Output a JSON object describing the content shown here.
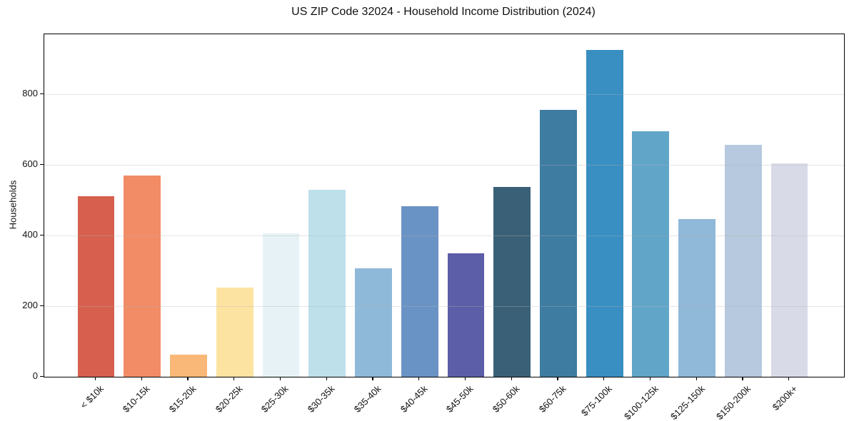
{
  "chart_data": {
    "type": "bar",
    "title": "US ZIP Code 32024 - Household Income Distribution (2024)",
    "xlabel": "",
    "ylabel": "Households",
    "categories": [
      "< $10k",
      "$10-15k",
      "$15-20k",
      "$20-25k",
      "$25-30k",
      "$30-35k",
      "$35-40k",
      "$40-45k",
      "$45-50k",
      "$50-60k",
      "$60-75k",
      "$75-100k",
      "$100-125k",
      "$125-150k",
      "$150-200k",
      "$200k+"
    ],
    "values": [
      511,
      570,
      62,
      252,
      407,
      530,
      308,
      483,
      349,
      538,
      755,
      926,
      695,
      447,
      656,
      604
    ],
    "bar_colors": [
      "#d6604d",
      "#f28c66",
      "#f9b878",
      "#fde3a1",
      "#e6f2f6",
      "#bde0eb",
      "#8fb9d9",
      "#6a93c5",
      "#5d5ea8",
      "#3a6077",
      "#3e7ca2",
      "#398fc2",
      "#61a5c9",
      "#90b8d9",
      "#b6c9de",
      "#d8dbe7"
    ],
    "yticks": [
      0,
      200,
      400,
      600,
      800
    ],
    "ylim": [
      0,
      970
    ],
    "xtick_rotation": 45,
    "grid": "horizontal-y",
    "grid_color_on_white": "#e8e8e8",
    "spine_color": "#000000",
    "legend": "none"
  }
}
